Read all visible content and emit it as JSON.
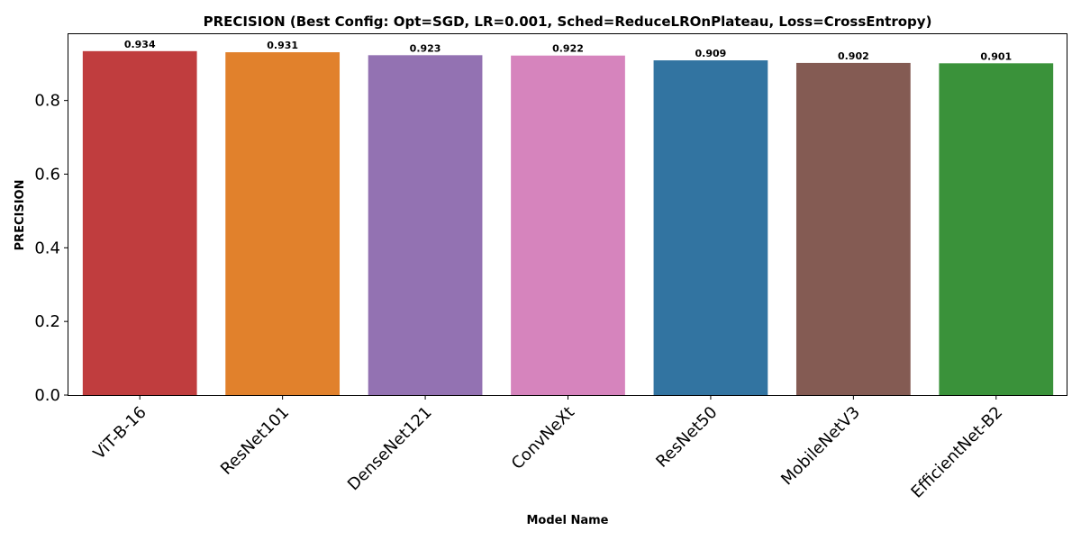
{
  "chart_data": {
    "type": "bar",
    "title": "PRECISION (Best Config: Opt=SGD, LR=0.001, Sched=ReduceLROnPlateau, Loss=CrossEntropy)",
    "xlabel": "Model Name",
    "ylabel": "PRECISION",
    "categories": [
      "ViT-B-16",
      "ResNet101",
      "DenseNet121",
      "ConvNeXt",
      "ResNet50",
      "MobileNetV3",
      "EfficientNet-B2"
    ],
    "values": [
      0.934,
      0.931,
      0.923,
      0.922,
      0.909,
      0.902,
      0.901
    ],
    "data_labels": [
      "0.934",
      "0.931",
      "0.923",
      "0.922",
      "0.909",
      "0.902",
      "0.901"
    ],
    "colors": [
      "#c03d3e",
      "#e1812c",
      "#9372b2",
      "#d684bd",
      "#3274a1",
      "#845b53",
      "#3a923a"
    ],
    "ylim": [
      0,
      0.98
    ],
    "yticks": [
      0.0,
      0.2,
      0.4,
      0.6,
      0.8
    ],
    "ytick_labels": [
      "0.0",
      "0.2",
      "0.4",
      "0.6",
      "0.8"
    ],
    "grid": false,
    "legend": "none"
  }
}
